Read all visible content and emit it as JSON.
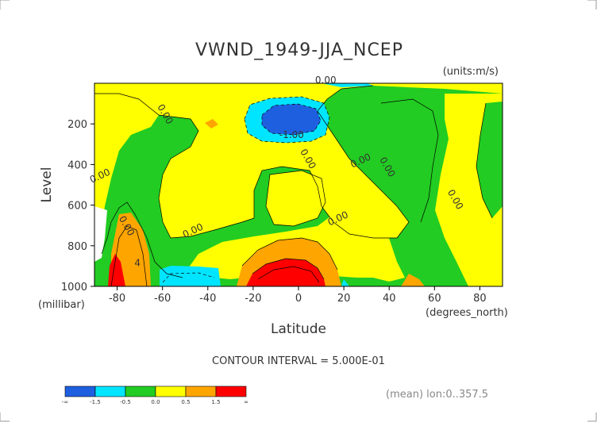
{
  "chart_data": {
    "type": "heatmap",
    "title": "VWND_1949-JJA_NCEP",
    "units": "(units:m/s)",
    "xlabel": "Latitude",
    "xlabel_units": "(degrees_north)",
    "ylabel": "Level",
    "ylabel_units": "(millibar)",
    "xlim": [
      -90,
      90
    ],
    "ylim": [
      1000,
      0
    ],
    "x_ticks": [
      -80,
      -60,
      -40,
      -20,
      0,
      20,
      40,
      60,
      80
    ],
    "x_tick_labels": [
      "-80",
      "-60",
      "-40",
      "-20",
      "0",
      "20",
      "40",
      "60",
      "80"
    ],
    "y_ticks": [
      200,
      400,
      600,
      800,
      1000
    ],
    "y_tick_labels": [
      "200",
      "400",
      "600",
      "800",
      "1000"
    ],
    "contour_interval_text": "CONTOUR INTERVAL = 5.000E-01",
    "footer_text": "(mean) lon:0..357.5",
    "colorbar": {
      "colors": [
        "#1e5fe0",
        "#00e5ff",
        "#22cc22",
        "#ffff00",
        "#ffa500",
        "#ff0000"
      ],
      "labels": [
        "-∞",
        "-1.5",
        "-0.5",
        "0.0",
        "0.5",
        "1.5",
        "∞"
      ]
    },
    "contour_labels": [
      {
        "text": "0.00",
        "lat": 12,
        "lev": 0
      },
      {
        "text": "0.00",
        "lat": -60,
        "lev": 160
      },
      {
        "text": "-1.00",
        "lat": -3,
        "lev": 270
      },
      {
        "text": "0.00",
        "lat": 3,
        "lev": 380
      },
      {
        "text": "0.00",
        "lat": 28,
        "lev": 395
      },
      {
        "text": "0.00",
        "lat": 38,
        "lev": 420
      },
      {
        "text": "0.00",
        "lat": -87,
        "lev": 470
      },
      {
        "text": "0.00",
        "lat": 68,
        "lev": 580
      },
      {
        "text": "0.00",
        "lat": 18,
        "lev": 680
      },
      {
        "text": "0.00",
        "lat": -77,
        "lev": 710
      },
      {
        "text": "0.00",
        "lat": -46,
        "lev": 740
      },
      {
        "text": "4",
        "lat": -71,
        "lev": 900
      }
    ],
    "regions": [
      {
        "name": "positive-upper-mid",
        "value_class": "0.0 to 0.5",
        "lat_range": [
          -55,
          10
        ],
        "lev_range": [
          0,
          560
        ]
      },
      {
        "name": "negative-jet-core",
        "value_class": "-∞ to -1.5",
        "lat_range": [
          -15,
          12
        ],
        "lev_range": [
          120,
          260
        ]
      },
      {
        "name": "positive-lower-tropics",
        "value_class": "1.5 to ∞",
        "lat_range": [
          -25,
          8
        ],
        "lev_range": [
          880,
          1000
        ]
      },
      {
        "name": "negative-near-surface-south",
        "value_class": "-1.5 to -0.5",
        "lat_range": [
          -60,
          -40
        ],
        "lev_range": [
          890,
          1000
        ]
      },
      {
        "name": "positive-antarctic-edge",
        "value_class": "1.5 to ∞",
        "lat_range": [
          -87,
          -82
        ],
        "lev_range": [
          880,
          1000
        ]
      }
    ]
  }
}
